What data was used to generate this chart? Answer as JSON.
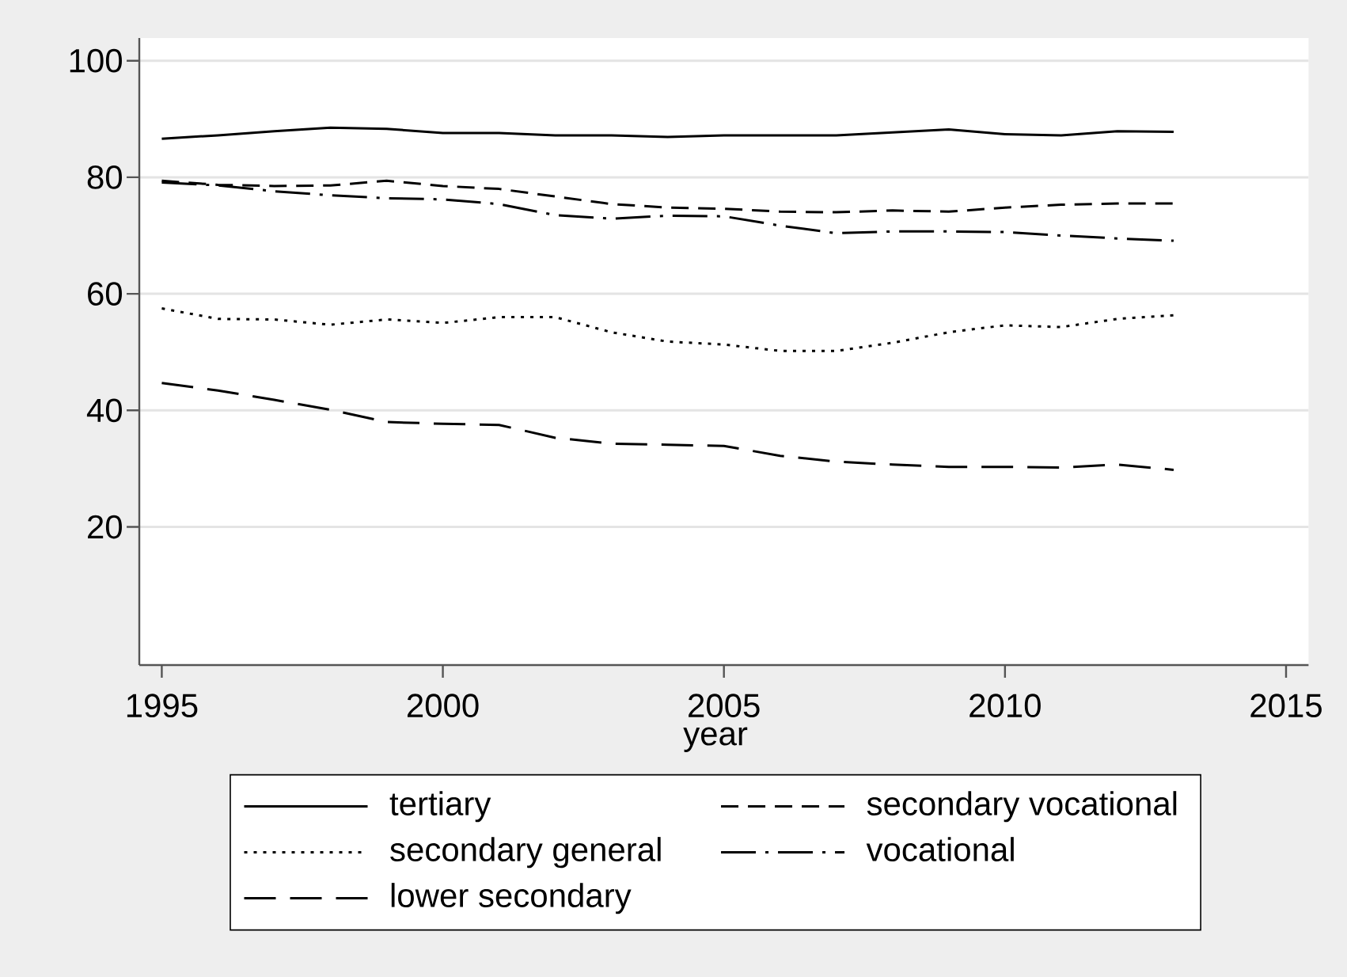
{
  "chart_data": {
    "type": "line",
    "xlabel": "year",
    "x": [
      1995,
      1996,
      1997,
      1998,
      1999,
      2000,
      2001,
      2002,
      2003,
      2004,
      2005,
      2006,
      2007,
      2008,
      2009,
      2010,
      2011,
      2012,
      2013
    ],
    "xlim": [
      1994.6,
      2015.4
    ],
    "xticks": [
      1995,
      2000,
      2005,
      2010,
      2015
    ],
    "ylim": [
      -3.7,
      103.9
    ],
    "yticks": [
      20,
      40,
      60,
      80,
      100
    ],
    "grid": "y",
    "legend": "bottom",
    "marker": "none",
    "series": [
      {
        "name": "tertiary",
        "color": "#000000",
        "line_style": "solid",
        "values": [
          86.6,
          87.2,
          87.9,
          88.5,
          88.3,
          87.6,
          87.6,
          87.2,
          87.2,
          86.9,
          87.2,
          87.2,
          87.2,
          87.7,
          88.2,
          87.4,
          87.2,
          87.9,
          87.8
        ]
      },
      {
        "name": "secondary vocational",
        "color": "#000000",
        "line_style": "dashed",
        "values": [
          79.4,
          78.7,
          78.5,
          78.6,
          79.4,
          78.5,
          78.0,
          76.7,
          75.4,
          74.8,
          74.6,
          74.1,
          74.0,
          74.3,
          74.1,
          74.8,
          75.3,
          75.5,
          75.5
        ]
      },
      {
        "name": "secondary general",
        "color": "#000000",
        "line_style": "dotted",
        "values": [
          57.5,
          55.7,
          55.6,
          54.7,
          55.6,
          55.0,
          56.0,
          56.0,
          53.4,
          51.8,
          51.3,
          50.2,
          50.2,
          51.6,
          53.4,
          54.6,
          54.3,
          55.7,
          56.3
        ]
      },
      {
        "name": "vocational",
        "color": "#000000",
        "line_style": "dashdot",
        "values": [
          79.1,
          78.6,
          77.6,
          76.9,
          76.4,
          76.2,
          75.4,
          73.5,
          72.9,
          73.4,
          73.3,
          71.7,
          70.4,
          70.7,
          70.7,
          70.6,
          70.0,
          69.5,
          69.1
        ]
      },
      {
        "name": "lower secondary",
        "color": "#000000",
        "line_style": "longdash",
        "values": [
          44.7,
          43.4,
          41.8,
          40.1,
          38.0,
          37.7,
          37.5,
          35.3,
          34.3,
          34.1,
          33.9,
          32.2,
          31.2,
          30.7,
          30.3,
          30.3,
          30.2,
          30.7,
          29.8
        ]
      }
    ]
  }
}
